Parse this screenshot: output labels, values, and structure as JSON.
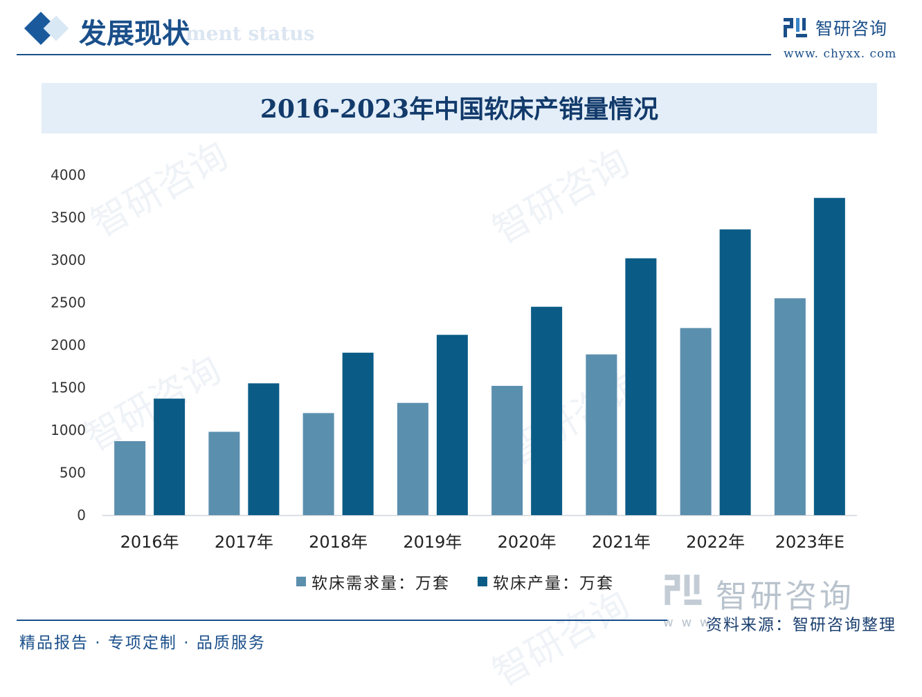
{
  "header": {
    "section_title": "发展现状",
    "section_subtitle": "ment status",
    "logo_name": "智研咨询",
    "logo_url": "www. chyxx. com"
  },
  "chart_data": {
    "type": "bar",
    "title": "2016-2023年中国软床产销量情况",
    "categories": [
      "2016年",
      "2017年",
      "2018年",
      "2019年",
      "2020年",
      "2021年",
      "2022年",
      "2023年E"
    ],
    "series": [
      {
        "name": "软床需求量：万套",
        "color": "#5b8fae",
        "values": [
          870,
          980,
          1200,
          1320,
          1520,
          1890,
          2200,
          2550
        ]
      },
      {
        "name": "软床产量：万套",
        "color": "#0a5c86",
        "values": [
          1370,
          1550,
          1910,
          2120,
          2450,
          3020,
          3360,
          3730
        ]
      }
    ],
    "yticks": [
      "0",
      "500",
      "1000",
      "1500",
      "2000",
      "2500",
      "3000",
      "3500",
      "4000"
    ],
    "ylim": [
      0,
      4000
    ],
    "legend_position": "bottom",
    "grid": false
  },
  "source": {
    "logo_text": "智研咨询",
    "www": "w w w",
    "text": "资料来源：智研咨询整理"
  },
  "footer": {
    "text": "精品报告 · 专项定制 · 品质服务"
  },
  "watermark": "智研咨询"
}
